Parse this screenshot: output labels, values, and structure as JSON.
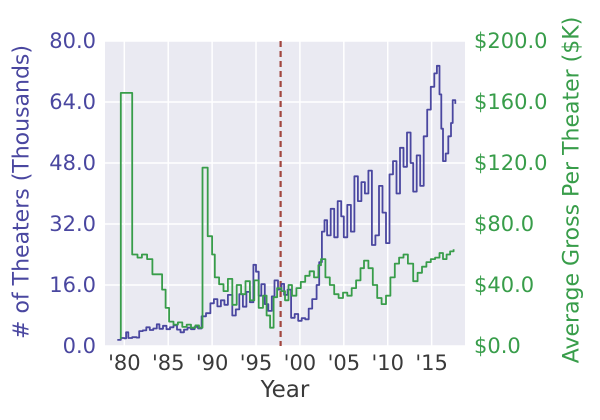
{
  "chart_data": {
    "type": "line",
    "title": "",
    "grid": true,
    "legend": false,
    "plot_background": "#eaeaf2",
    "grid_color": "#ffffff",
    "x_axis": {
      "label": "Year",
      "range": [
        1977.8,
        2018.8
      ],
      "tick_values": [
        1980,
        1985,
        1990,
        1995,
        2000,
        2005,
        2010,
        2015
      ],
      "tick_labels": [
        "'80",
        "'85",
        "'90",
        "'95",
        "'00",
        "'05",
        "'10",
        "'15"
      ],
      "color": "#3a3a3a"
    },
    "left_axis": {
      "label": "# of Theaters (Thousands)",
      "range": [
        0,
        80
      ],
      "tick_values": [
        80,
        64,
        48,
        32,
        16,
        0
      ],
      "tick_labels": [
        "80.0",
        "64.0",
        "48.0",
        "32.0",
        "16.0",
        "0.0"
      ],
      "color": "#4a47a0"
    },
    "right_axis": {
      "label": "Average Gross Per Theater ($K)",
      "range": [
        0,
        200
      ],
      "tick_values": [
        200,
        160,
        120,
        80,
        40,
        0
      ],
      "tick_labels": [
        "$200.0",
        "$160.0",
        "$120.0",
        "$80.0",
        "$40.0",
        "$0.0"
      ],
      "color": "#389d4a"
    },
    "reference_line": {
      "orientation": "vertical",
      "x": 1997.8,
      "style": "dashed",
      "color": "#a2463f"
    },
    "series": [
      {
        "name": "# of Theaters (Thousands)",
        "axis": "left",
        "color": "#4a47a0",
        "style": "step",
        "points": [
          [
            1979.2,
            1.6
          ],
          [
            1979.6,
            2.1
          ],
          [
            1980,
            2
          ],
          [
            1980.2,
            3.6
          ],
          [
            1980.45,
            2.1
          ],
          [
            1980.9,
            2.3
          ],
          [
            1981.4,
            2.2
          ],
          [
            1981.7,
            3.9
          ],
          [
            1982.1,
            4.1
          ],
          [
            1982.5,
            4.9
          ],
          [
            1982.9,
            4.2
          ],
          [
            1983.3,
            4.6
          ],
          [
            1983.7,
            5.7
          ],
          [
            1984,
            4.5
          ],
          [
            1984.4,
            5.3
          ],
          [
            1984.8,
            4.4
          ],
          [
            1985.2,
            4.9
          ],
          [
            1985.6,
            5.4
          ],
          [
            1986,
            4.3
          ],
          [
            1986.4,
            3.6
          ],
          [
            1986.8,
            4.3
          ],
          [
            1987.2,
            4.8
          ],
          [
            1987.6,
            4.4
          ],
          [
            1988,
            5
          ],
          [
            1988.4,
            4.6
          ],
          [
            1988.8,
            7.8
          ],
          [
            1989.3,
            8.6
          ],
          [
            1989.8,
            11.2
          ],
          [
            1990.2,
            12.3
          ],
          [
            1990.6,
            10.4
          ],
          [
            1991,
            12
          ],
          [
            1991.4,
            10.8
          ],
          [
            1991.8,
            13.4
          ],
          [
            1992.3,
            8
          ],
          [
            1992.7,
            9.6
          ],
          [
            1993.1,
            13.6
          ],
          [
            1993.5,
            10.3
          ],
          [
            1993.9,
            14.2
          ],
          [
            1994.3,
            11.5
          ],
          [
            1994.7,
            21.3
          ],
          [
            1995,
            19.5
          ],
          [
            1995.3,
            13.2
          ],
          [
            1995.6,
            16.2
          ],
          [
            1996,
            11
          ],
          [
            1996.4,
            9.2
          ],
          [
            1996.8,
            13
          ],
          [
            1997.1,
            17.2
          ],
          [
            1997.5,
            14.8
          ],
          [
            1997.9,
            16.3
          ],
          [
            1998.2,
            13.4
          ],
          [
            1998.6,
            14.8
          ],
          [
            1999,
            7.4
          ],
          [
            1999.4,
            8.4
          ],
          [
            1999.8,
            6.6
          ],
          [
            2000.2,
            7.3
          ],
          [
            2000.6,
            7
          ],
          [
            2001,
            9.8
          ],
          [
            2001.4,
            12.3
          ],
          [
            2001.9,
            16
          ],
          [
            2002.2,
            22
          ],
          [
            2002.5,
            30
          ],
          [
            2002.8,
            33
          ],
          [
            2003.1,
            29
          ],
          [
            2003.5,
            36
          ],
          [
            2003.9,
            28.5
          ],
          [
            2004.3,
            38
          ],
          [
            2004.7,
            34
          ],
          [
            2005,
            28.5
          ],
          [
            2005.4,
            37
          ],
          [
            2005.8,
            30
          ],
          [
            2006.2,
            44.5
          ],
          [
            2006.6,
            38
          ],
          [
            2007,
            43
          ],
          [
            2007.4,
            40
          ],
          [
            2007.8,
            46
          ],
          [
            2008.2,
            26.5
          ],
          [
            2008.6,
            29
          ],
          [
            2009,
            42
          ],
          [
            2009.4,
            35
          ],
          [
            2009.8,
            27
          ],
          [
            2010.2,
            45
          ],
          [
            2010.6,
            48.5
          ],
          [
            2011,
            40
          ],
          [
            2011.4,
            52
          ],
          [
            2011.8,
            47
          ],
          [
            2012.2,
            56
          ],
          [
            2012.6,
            48
          ],
          [
            2012.9,
            40.5
          ],
          [
            2013.3,
            50
          ],
          [
            2013.7,
            42
          ],
          [
            2014.1,
            55
          ],
          [
            2014.5,
            62
          ],
          [
            2014.9,
            68
          ],
          [
            2015.3,
            71.5
          ],
          [
            2015.6,
            73.5
          ],
          [
            2015.9,
            66
          ],
          [
            2016.1,
            57
          ],
          [
            2016.3,
            48.5
          ],
          [
            2016.6,
            50.5
          ],
          [
            2016.9,
            55
          ],
          [
            2017.2,
            58.5
          ],
          [
            2017.4,
            64.5
          ],
          [
            2017.7,
            63.5
          ]
        ]
      },
      {
        "name": "Average Gross Per Theater ($K)",
        "axis": "right",
        "color": "#389d4a",
        "style": "step",
        "points": [
          [
            1979.5,
            5
          ],
          [
            1979.6,
            166
          ],
          [
            1980.8,
            166
          ],
          [
            1980.9,
            60
          ],
          [
            1981.5,
            58
          ],
          [
            1982,
            60
          ],
          [
            1982.6,
            57
          ],
          [
            1983.2,
            47
          ],
          [
            1984.1,
            47
          ],
          [
            1984.3,
            37
          ],
          [
            1984.7,
            25
          ],
          [
            1985.1,
            16
          ],
          [
            1985.6,
            14
          ],
          [
            1986.1,
            15.5
          ],
          [
            1986.6,
            12.5
          ],
          [
            1987.1,
            14
          ],
          [
            1987.6,
            12
          ],
          [
            1988.1,
            13.5
          ],
          [
            1988.5,
            12
          ],
          [
            1988.9,
            117
          ],
          [
            1989.5,
            72
          ],
          [
            1990,
            60
          ],
          [
            1990.3,
            45
          ],
          [
            1990.8,
            40.5
          ],
          [
            1991.3,
            36
          ],
          [
            1991.8,
            44
          ],
          [
            1992.3,
            27
          ],
          [
            1992.8,
            40
          ],
          [
            1993.3,
            34
          ],
          [
            1993.8,
            42.5
          ],
          [
            1994.3,
            30
          ],
          [
            1994.8,
            43
          ],
          [
            1995.3,
            25
          ],
          [
            1995.8,
            33
          ],
          [
            1996.2,
            20
          ],
          [
            1996.6,
            12
          ],
          [
            1997,
            32
          ],
          [
            1997.4,
            38
          ],
          [
            1997.9,
            36
          ],
          [
            1998.3,
            30
          ],
          [
            1998.7,
            40
          ],
          [
            1999.1,
            33
          ],
          [
            1999.6,
            38
          ],
          [
            2000.1,
            42
          ],
          [
            2000.6,
            46
          ],
          [
            2001.1,
            49
          ],
          [
            2001.6,
            45
          ],
          [
            2002.1,
            53
          ],
          [
            2002.4,
            57
          ],
          [
            2002.9,
            45
          ],
          [
            2003.4,
            40
          ],
          [
            2003.9,
            34
          ],
          [
            2004.4,
            31.5
          ],
          [
            2004.9,
            35
          ],
          [
            2005.4,
            33
          ],
          [
            2005.9,
            38
          ],
          [
            2006.4,
            43
          ],
          [
            2006.9,
            51
          ],
          [
            2007.3,
            56
          ],
          [
            2007.8,
            51
          ],
          [
            2008.3,
            40
          ],
          [
            2008.8,
            31.5
          ],
          [
            2009.3,
            27.5
          ],
          [
            2009.8,
            33
          ],
          [
            2010.3,
            45
          ],
          [
            2010.8,
            54
          ],
          [
            2011.3,
            58
          ],
          [
            2011.8,
            60
          ],
          [
            2012.3,
            54
          ],
          [
            2012.9,
            42.5
          ],
          [
            2013.4,
            48
          ],
          [
            2013.9,
            52
          ],
          [
            2014.4,
            55
          ],
          [
            2014.9,
            57
          ],
          [
            2015.4,
            58
          ],
          [
            2015.9,
            61
          ],
          [
            2016.3,
            57
          ],
          [
            2016.7,
            60
          ],
          [
            2017.1,
            62
          ],
          [
            2017.5,
            63.5
          ]
        ]
      }
    ]
  }
}
